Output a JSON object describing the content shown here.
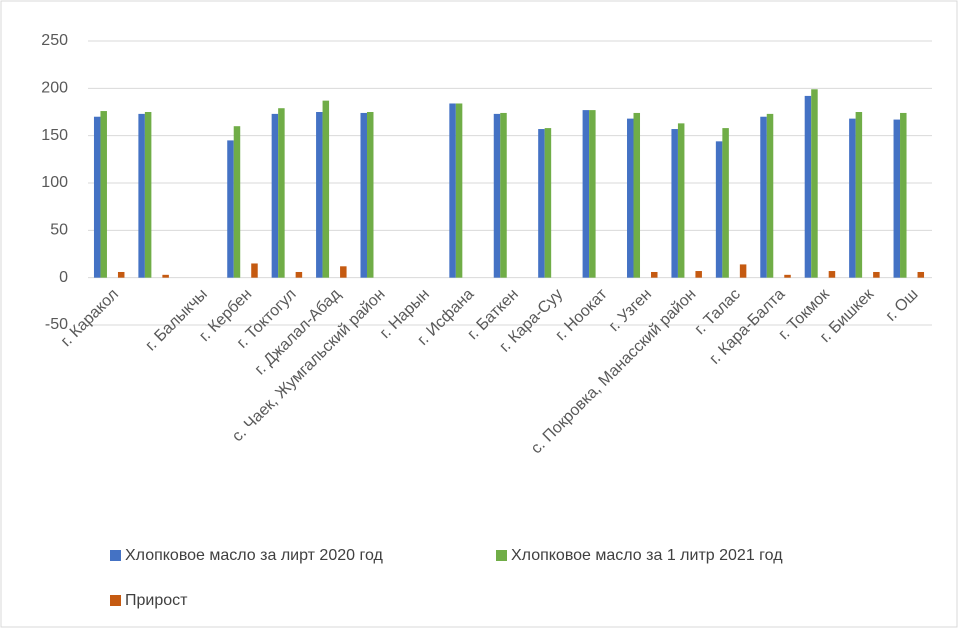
{
  "chart_data": {
    "type": "bar",
    "categories": [
      "г. Каракол",
      null,
      "г. Балыкчы",
      "г. Кербен",
      "г. Токтогул",
      "г. Джалал-Абад",
      "с. Чаек, Жумгальский район",
      "г. Нарын",
      "г. Исфана",
      "г. Баткен",
      "г. Кара-Суу",
      "г. Ноокат",
      "г. Узген",
      "с. Покровка, Манасский район",
      "г. Талас",
      "г. Кара-Балта",
      "г. Токмок",
      "г. Бишкек",
      "г. Ош"
    ],
    "series": [
      {
        "name": "Хлопковое масло за лирт 2020 год",
        "color": "#4472c4",
        "values": [
          170,
          173,
          null,
          145,
          173,
          175,
          174,
          null,
          184,
          173,
          157,
          177,
          168,
          157,
          144,
          170,
          192,
          168,
          167
        ]
      },
      {
        "name": "Хлопковое масло за 1 литр 2021 год",
        "color": "#70ad47",
        "values": [
          176,
          175,
          null,
          160,
          179,
          187,
          175,
          null,
          184,
          174,
          158,
          177,
          174,
          163,
          158,
          173,
          199,
          175,
          174
        ]
      },
      {
        "name": "Прирост",
        "color": "#c55a11",
        "values": [
          6,
          3,
          null,
          15,
          6,
          12,
          null,
          null,
          null,
          null,
          null,
          null,
          6,
          7,
          14,
          3,
          7,
          6,
          6
        ]
      }
    ],
    "ylim": [
      -50,
      250
    ],
    "yticks": [
      -50,
      0,
      50,
      100,
      150,
      200,
      250
    ],
    "grid": true,
    "legend": "bottom"
  }
}
